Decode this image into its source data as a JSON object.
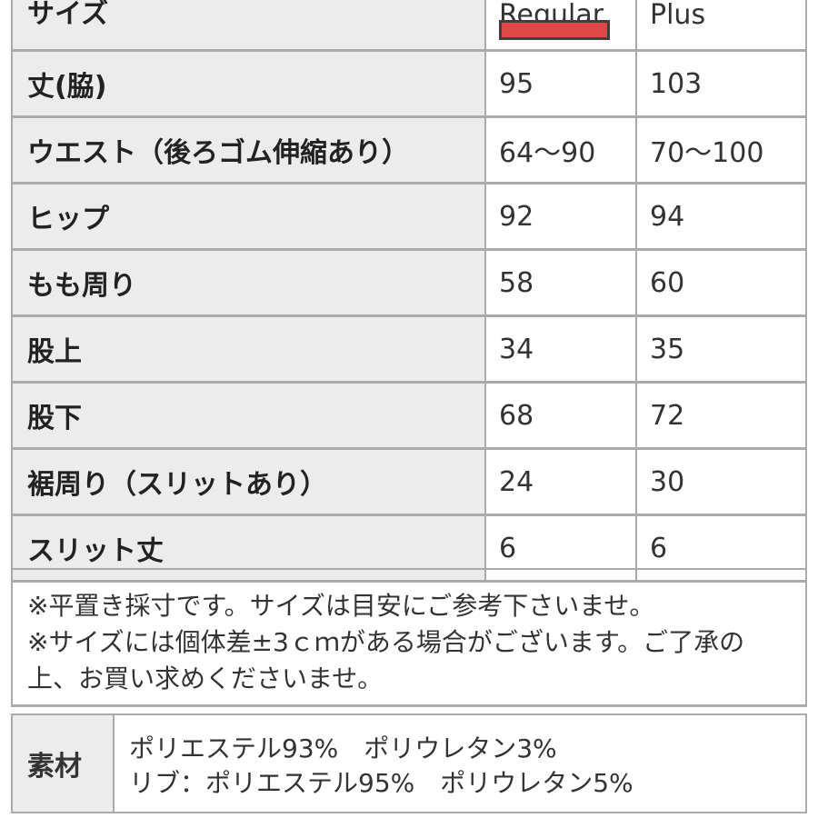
{
  "table": {
    "header": {
      "label": "サイズ",
      "col1": "Regular",
      "col2": "Plus"
    },
    "rows": [
      {
        "label": "丈(脇)",
        "regular": "95",
        "plus": "103"
      },
      {
        "label": "ウエスト（後ろゴム伸縮あり）",
        "regular": "64〜90",
        "plus": "70〜100"
      },
      {
        "label": "ヒップ",
        "regular": "92",
        "plus": "94"
      },
      {
        "label": "もも周り",
        "regular": "58",
        "plus": "60"
      },
      {
        "label": "股上",
        "regular": "34",
        "plus": "35"
      },
      {
        "label": "股下",
        "regular": "68",
        "plus": "72"
      },
      {
        "label": "裾周り（スリットあり）",
        "regular": "24",
        "plus": "30"
      },
      {
        "label": "スリット丈",
        "regular": "6",
        "plus": "6"
      }
    ]
  },
  "note": {
    "line1": "※平置き採寸です。サイズは目安にご参考下さいませ。",
    "line2": "※サイズには個体差±3ｃｍがある場合がございます。ご了承の上、お買い求めくださいませ。"
  },
  "material": {
    "label": "素材",
    "line1": "ポリエステル93%　ポリウレタン3%",
    "line2": "リブ：ポリエステル95%　ポリウレタン5%"
  },
  "colors": {
    "marker": "#e04848",
    "label_bg": "#ececec",
    "border": "#aaaaaa"
  }
}
